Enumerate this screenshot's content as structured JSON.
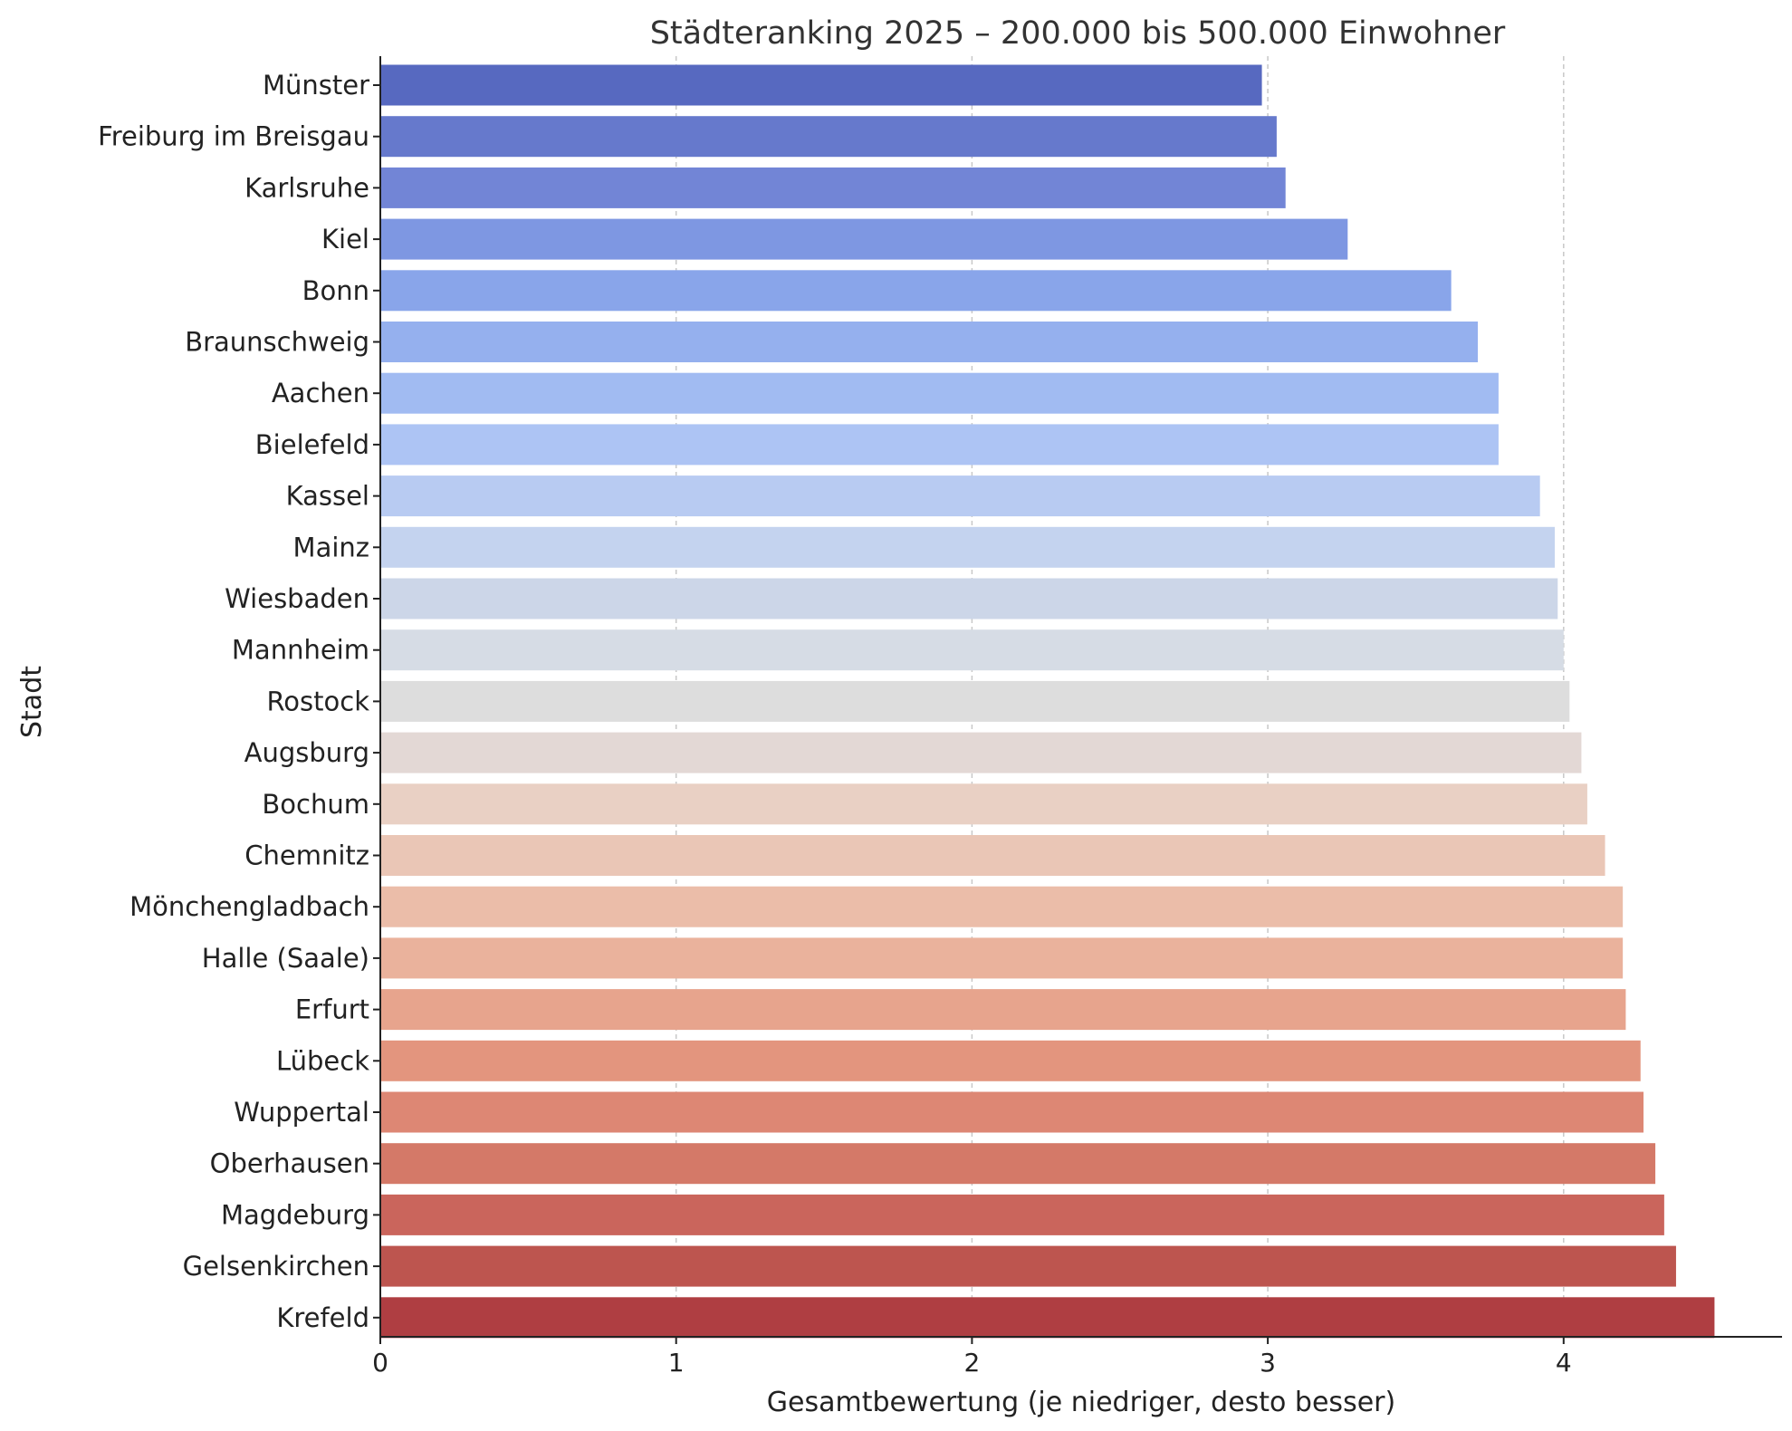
{
  "chart_data": {
    "type": "bar",
    "orientation": "horizontal",
    "title": "Städteranking 2025 – 200.000 bis 500.000 Einwohner",
    "xlabel": "Gesamtbewertung (je niedriger, desto besser)",
    "ylabel": "Stadt",
    "xlim": [
      0,
      4.75
    ],
    "xticks": [
      "0",
      "1",
      "2",
      "3",
      "4"
    ],
    "grid": "vertical dashed",
    "colormap": "coolwarm",
    "categories": [
      "Münster",
      "Freiburg im Breisgau",
      "Karlsruhe",
      "Kiel",
      "Bonn",
      "Braunschweig",
      "Aachen",
      "Bielefeld",
      "Kassel",
      "Mainz",
      "Wiesbaden",
      "Mannheim",
      "Rostock",
      "Augsburg",
      "Bochum",
      "Chemnitz",
      "Mönchengladbach",
      "Halle (Saale)",
      "Erfurt",
      "Lübeck",
      "Wuppertal",
      "Oberhausen",
      "Magdeburg",
      "Gelsenkirchen",
      "Krefeld"
    ],
    "values": [
      2.98,
      3.03,
      3.06,
      3.27,
      3.62,
      3.71,
      3.78,
      3.78,
      3.92,
      3.97,
      3.98,
      4.0,
      4.02,
      4.06,
      4.08,
      4.14,
      4.2,
      4.2,
      4.21,
      4.26,
      4.27,
      4.31,
      4.34,
      4.38,
      4.51
    ],
    "colors": [
      "#5769c0",
      "#6679cc",
      "#7285d6",
      "#7e97e2",
      "#89a5ea",
      "#95b0ee",
      "#a1bbf2",
      "#adc4f4",
      "#b8cbf2",
      "#c4d3ef",
      "#ccd6e8",
      "#d6dce5",
      "#dddddd",
      "#e3d8d5",
      "#e9d0c4",
      "#eac6b6",
      "#ebbda9",
      "#eab29c",
      "#e7a48d",
      "#e3957e",
      "#dd8774",
      "#d47968",
      "#ca655c",
      "#bd554f",
      "#af3e42"
    ]
  }
}
